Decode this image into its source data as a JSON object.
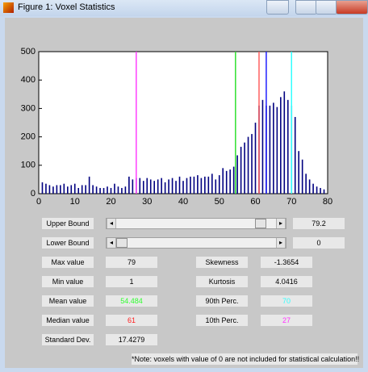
{
  "window": {
    "title": "Figure 1: Voxel Statistics"
  },
  "chart_data": {
    "type": "bar",
    "color": "#000080",
    "x": [
      1,
      2,
      3,
      4,
      5,
      6,
      7,
      8,
      9,
      10,
      11,
      12,
      13,
      14,
      15,
      16,
      17,
      18,
      19,
      20,
      21,
      22,
      23,
      24,
      25,
      26,
      27,
      28,
      29,
      30,
      31,
      32,
      33,
      34,
      35,
      36,
      37,
      38,
      39,
      40,
      41,
      42,
      43,
      44,
      45,
      46,
      47,
      48,
      49,
      50,
      51,
      52,
      53,
      54,
      55,
      56,
      57,
      58,
      59,
      60,
      61,
      62,
      63,
      64,
      65,
      66,
      67,
      68,
      69,
      70,
      71,
      72,
      73,
      74,
      75,
      76,
      77,
      78,
      79
    ],
    "values": [
      40,
      35,
      30,
      25,
      30,
      30,
      35,
      25,
      30,
      35,
      20,
      30,
      30,
      60,
      30,
      25,
      20,
      20,
      25,
      20,
      35,
      25,
      20,
      25,
      60,
      50,
      55,
      55,
      45,
      55,
      50,
      45,
      50,
      55,
      40,
      50,
      55,
      45,
      60,
      45,
      55,
      60,
      60,
      65,
      55,
      60,
      60,
      70,
      50,
      65,
      90,
      80,
      85,
      95,
      135,
      165,
      180,
      200,
      210,
      250,
      310,
      330,
      310,
      310,
      320,
      305,
      340,
      360,
      330,
      310,
      270,
      150,
      120,
      70,
      50,
      35,
      25,
      20,
      15
    ],
    "markers": [
      {
        "x": 27,
        "color": "#ff40ff"
      },
      {
        "x": 54.484,
        "color": "#30e030"
      },
      {
        "x": 61,
        "color": "#ff6060"
      },
      {
        "x": 63,
        "color": "#2020ff"
      },
      {
        "x": 70,
        "color": "#30ffff"
      }
    ],
    "xlim": [
      0,
      80
    ],
    "xticks": [
      0,
      10,
      20,
      30,
      40,
      50,
      60,
      70,
      80
    ],
    "ylim": [
      0,
      500
    ],
    "yticks": [
      0,
      100,
      200,
      300,
      400,
      500
    ]
  },
  "sliders": [
    {
      "label": "Upper Bound",
      "value": "79.2"
    },
    {
      "label": "Lower Bound",
      "value": "0"
    }
  ],
  "fields": [
    {
      "label": "Max value",
      "value": "79",
      "color": "#000000"
    },
    {
      "label": "Min value",
      "value": "1",
      "color": "#000000"
    },
    {
      "label": "Mean value",
      "value": "54.484",
      "color": "#30ff30"
    },
    {
      "label": "Median value",
      "value": "61",
      "color": "#ff2020"
    },
    {
      "label": "Standard Dev.",
      "value": "17.4279",
      "color": "#000000"
    },
    {
      "label": "Skewness",
      "value": "-1.3654",
      "color": "#000000"
    },
    {
      "label": "Kurtosis",
      "value": "4.0416",
      "color": "#000000"
    },
    {
      "label": "90th Perc.",
      "value": "70",
      "color": "#30ffff"
    },
    {
      "label": "10th Perc.",
      "value": "27",
      "color": "#ff30ff"
    }
  ],
  "note": "*Note: voxels with value of 0 are not included for statistical calculation!!"
}
